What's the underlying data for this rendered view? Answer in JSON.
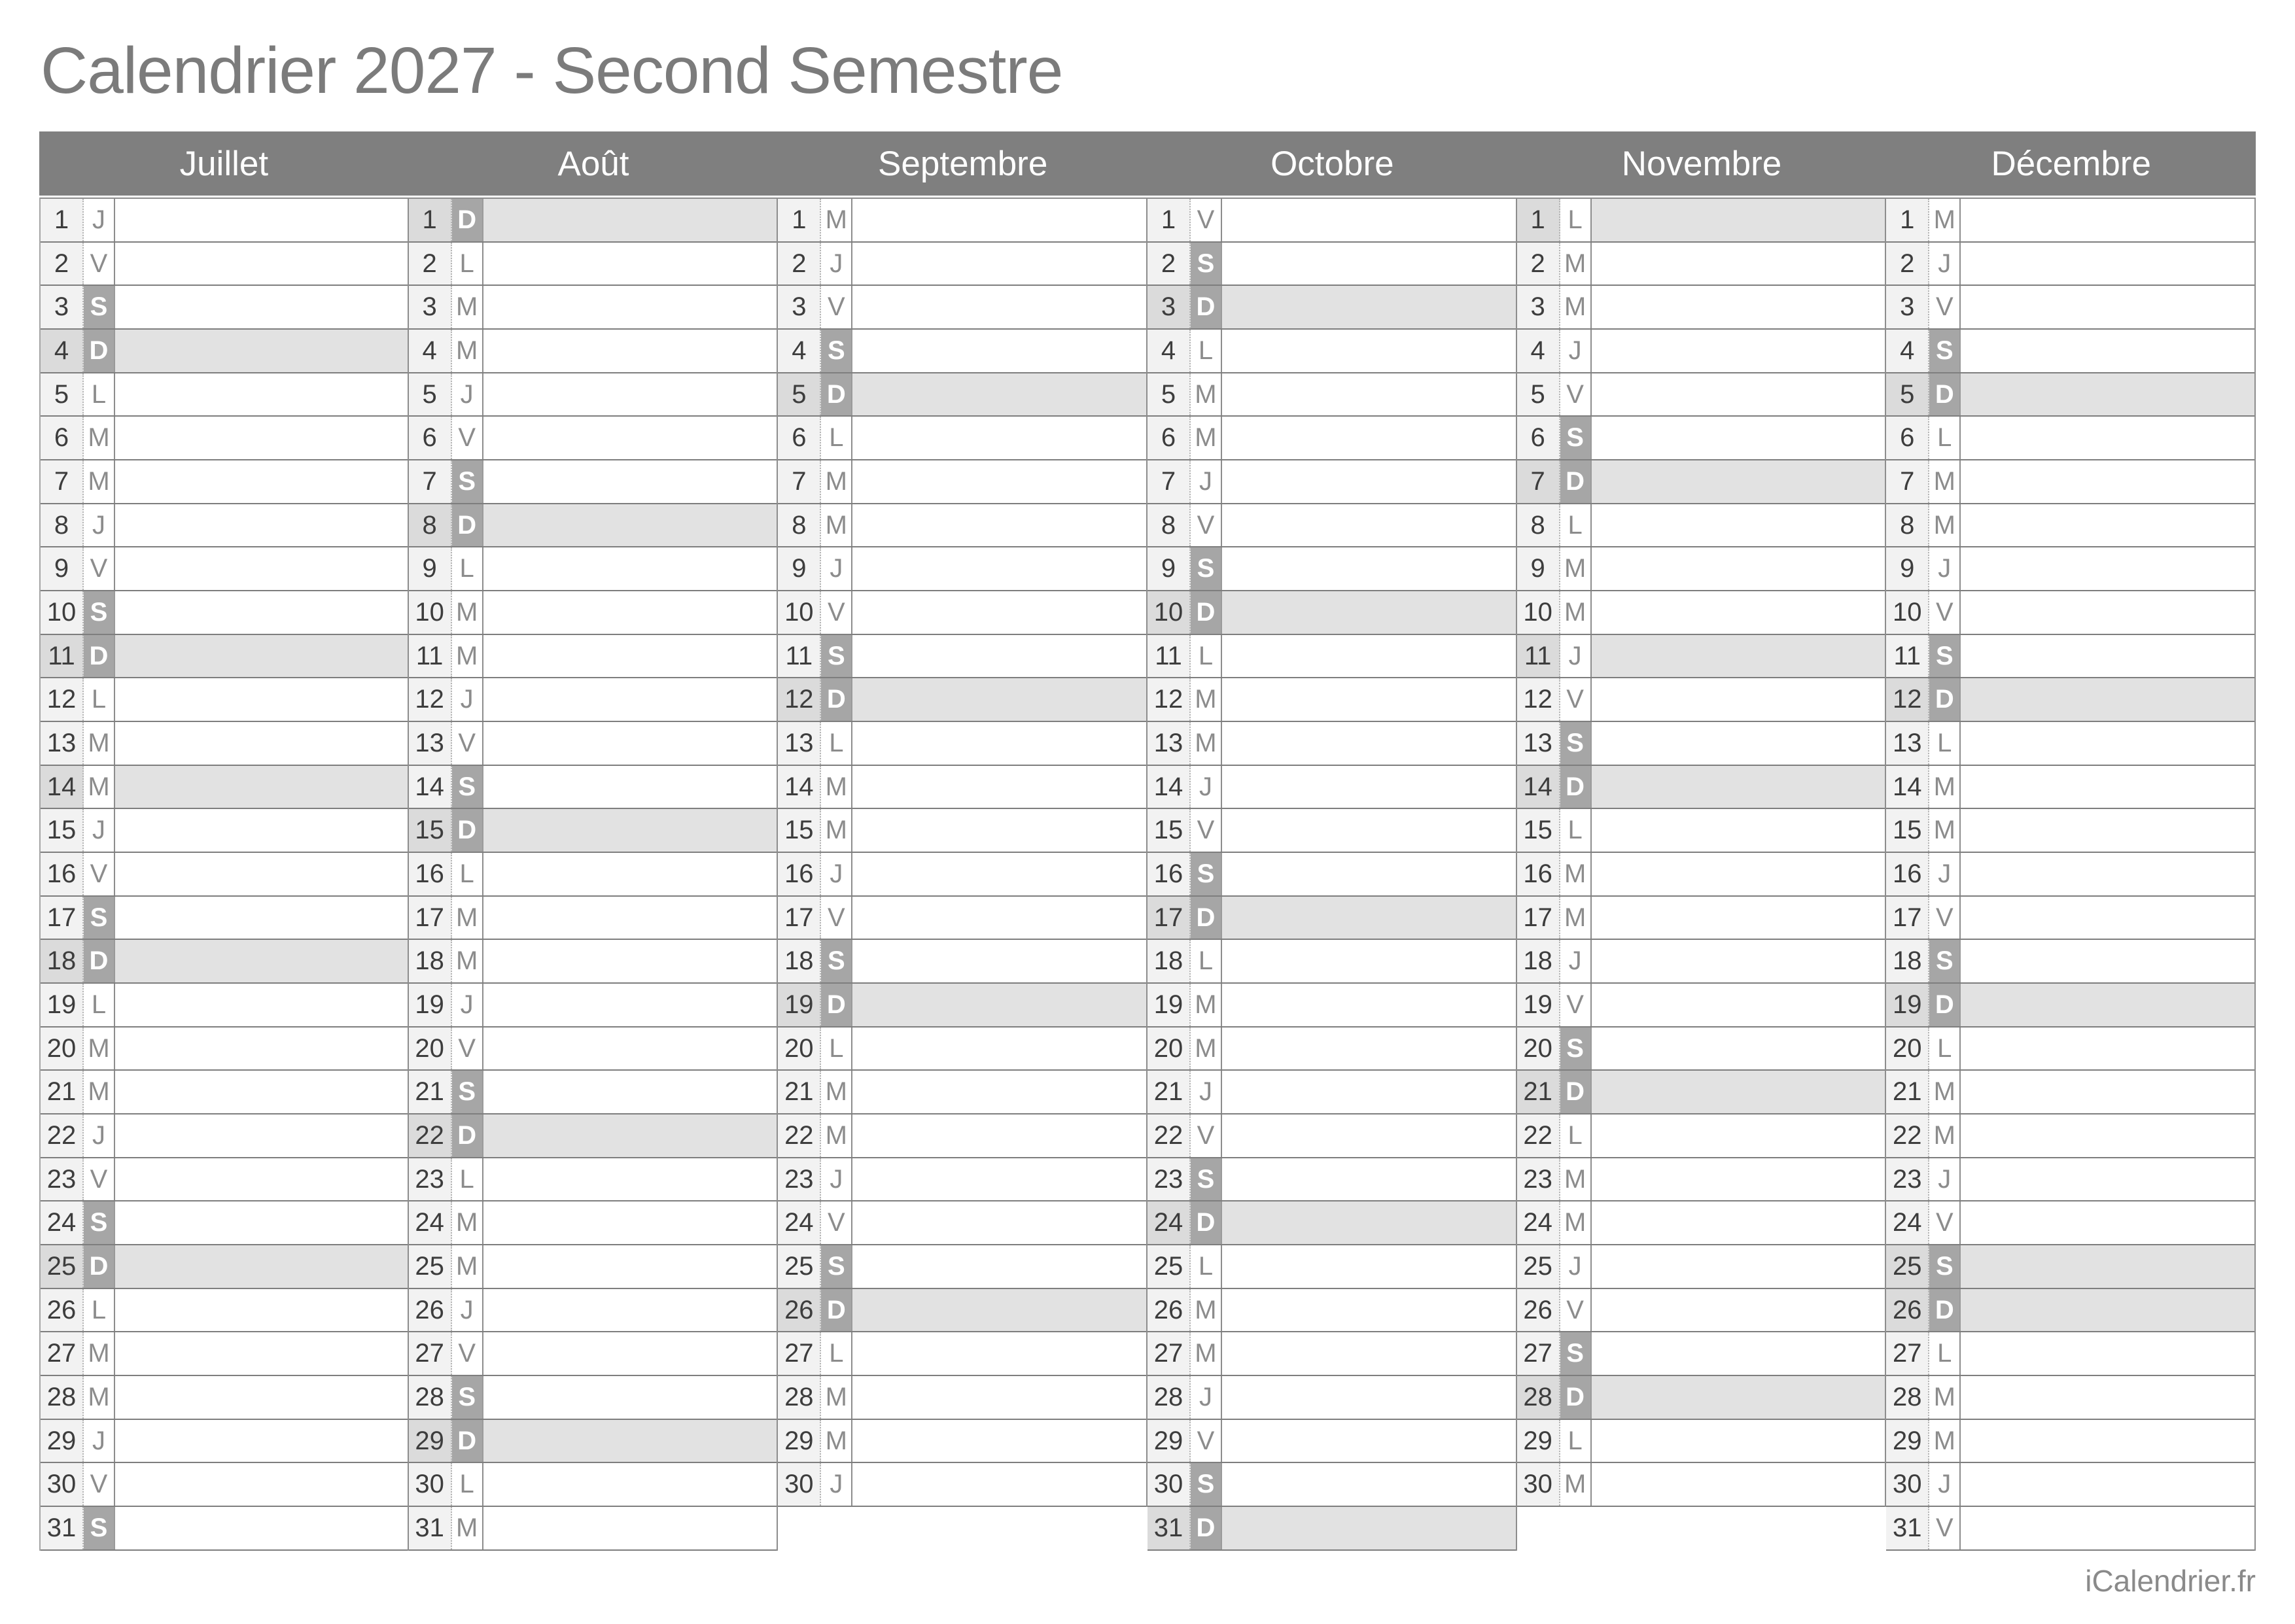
{
  "title": "Calendrier 2027 - Second Semestre",
  "footer": "iCalendrier.fr",
  "colors": {
    "title_text": "#7b7b7b",
    "header_bar": "#7f7f7f",
    "header_text": "#ffffff",
    "day_number_bg": "#f2f2f2",
    "weekend_letter_bg": "#a6a6a6",
    "weekend_letter_text": "#ffffff",
    "highlight_row_bg": "#e2e2e2",
    "highlight_number_bg": "#dbdbdb"
  },
  "months": [
    {
      "name": "Juillet",
      "days": [
        [
          1,
          "J"
        ],
        [
          2,
          "V"
        ],
        [
          3,
          "S"
        ],
        [
          4,
          "D"
        ],
        [
          5,
          "L"
        ],
        [
          6,
          "M"
        ],
        [
          7,
          "M"
        ],
        [
          8,
          "J"
        ],
        [
          9,
          "V"
        ],
        [
          10,
          "S"
        ],
        [
          11,
          "D"
        ],
        [
          12,
          "L"
        ],
        [
          13,
          "M"
        ],
        [
          14,
          "M"
        ],
        [
          15,
          "J"
        ],
        [
          16,
          "V"
        ],
        [
          17,
          "S"
        ],
        [
          18,
          "D"
        ],
        [
          19,
          "L"
        ],
        [
          20,
          "M"
        ],
        [
          21,
          "M"
        ],
        [
          22,
          "J"
        ],
        [
          23,
          "V"
        ],
        [
          24,
          "S"
        ],
        [
          25,
          "D"
        ],
        [
          26,
          "L"
        ],
        [
          27,
          "M"
        ],
        [
          28,
          "M"
        ],
        [
          29,
          "J"
        ],
        [
          30,
          "V"
        ],
        [
          31,
          "S"
        ]
      ],
      "weekend_days": [
        3,
        4,
        10,
        11,
        17,
        18,
        24,
        25,
        31
      ],
      "highlighted_days": [
        4,
        11,
        14,
        18,
        25
      ]
    },
    {
      "name": "Août",
      "days": [
        [
          1,
          "D"
        ],
        [
          2,
          "L"
        ],
        [
          3,
          "M"
        ],
        [
          4,
          "M"
        ],
        [
          5,
          "J"
        ],
        [
          6,
          "V"
        ],
        [
          7,
          "S"
        ],
        [
          8,
          "D"
        ],
        [
          9,
          "L"
        ],
        [
          10,
          "M"
        ],
        [
          11,
          "M"
        ],
        [
          12,
          "J"
        ],
        [
          13,
          "V"
        ],
        [
          14,
          "S"
        ],
        [
          15,
          "D"
        ],
        [
          16,
          "L"
        ],
        [
          17,
          "M"
        ],
        [
          18,
          "M"
        ],
        [
          19,
          "J"
        ],
        [
          20,
          "V"
        ],
        [
          21,
          "S"
        ],
        [
          22,
          "D"
        ],
        [
          23,
          "L"
        ],
        [
          24,
          "M"
        ],
        [
          25,
          "M"
        ],
        [
          26,
          "J"
        ],
        [
          27,
          "V"
        ],
        [
          28,
          "S"
        ],
        [
          29,
          "D"
        ],
        [
          30,
          "L"
        ],
        [
          31,
          "M"
        ]
      ],
      "weekend_days": [
        1,
        7,
        8,
        14,
        15,
        21,
        22,
        28,
        29
      ],
      "highlighted_days": [
        1,
        8,
        15,
        22,
        29
      ]
    },
    {
      "name": "Septembre",
      "days": [
        [
          1,
          "M"
        ],
        [
          2,
          "J"
        ],
        [
          3,
          "V"
        ],
        [
          4,
          "S"
        ],
        [
          5,
          "D"
        ],
        [
          6,
          "L"
        ],
        [
          7,
          "M"
        ],
        [
          8,
          "M"
        ],
        [
          9,
          "J"
        ],
        [
          10,
          "V"
        ],
        [
          11,
          "S"
        ],
        [
          12,
          "D"
        ],
        [
          13,
          "L"
        ],
        [
          14,
          "M"
        ],
        [
          15,
          "M"
        ],
        [
          16,
          "J"
        ],
        [
          17,
          "V"
        ],
        [
          18,
          "S"
        ],
        [
          19,
          "D"
        ],
        [
          20,
          "L"
        ],
        [
          21,
          "M"
        ],
        [
          22,
          "M"
        ],
        [
          23,
          "J"
        ],
        [
          24,
          "V"
        ],
        [
          25,
          "S"
        ],
        [
          26,
          "D"
        ],
        [
          27,
          "L"
        ],
        [
          28,
          "M"
        ],
        [
          29,
          "M"
        ],
        [
          30,
          "J"
        ]
      ],
      "weekend_days": [
        4,
        5,
        11,
        12,
        18,
        19,
        25,
        26
      ],
      "highlighted_days": [
        5,
        12,
        19,
        26
      ]
    },
    {
      "name": "Octobre",
      "days": [
        [
          1,
          "V"
        ],
        [
          2,
          "S"
        ],
        [
          3,
          "D"
        ],
        [
          4,
          "L"
        ],
        [
          5,
          "M"
        ],
        [
          6,
          "M"
        ],
        [
          7,
          "J"
        ],
        [
          8,
          "V"
        ],
        [
          9,
          "S"
        ],
        [
          10,
          "D"
        ],
        [
          11,
          "L"
        ],
        [
          12,
          "M"
        ],
        [
          13,
          "M"
        ],
        [
          14,
          "J"
        ],
        [
          15,
          "V"
        ],
        [
          16,
          "S"
        ],
        [
          17,
          "D"
        ],
        [
          18,
          "L"
        ],
        [
          19,
          "M"
        ],
        [
          20,
          "M"
        ],
        [
          21,
          "J"
        ],
        [
          22,
          "V"
        ],
        [
          23,
          "S"
        ],
        [
          24,
          "D"
        ],
        [
          25,
          "L"
        ],
        [
          26,
          "M"
        ],
        [
          27,
          "M"
        ],
        [
          28,
          "J"
        ],
        [
          29,
          "V"
        ],
        [
          30,
          "S"
        ],
        [
          31,
          "D"
        ]
      ],
      "weekend_days": [
        2,
        3,
        9,
        10,
        16,
        17,
        23,
        24,
        30,
        31
      ],
      "highlighted_days": [
        3,
        10,
        17,
        24,
        31
      ]
    },
    {
      "name": "Novembre",
      "days": [
        [
          1,
          "L"
        ],
        [
          2,
          "M"
        ],
        [
          3,
          "M"
        ],
        [
          4,
          "J"
        ],
        [
          5,
          "V"
        ],
        [
          6,
          "S"
        ],
        [
          7,
          "D"
        ],
        [
          8,
          "L"
        ],
        [
          9,
          "M"
        ],
        [
          10,
          "M"
        ],
        [
          11,
          "J"
        ],
        [
          12,
          "V"
        ],
        [
          13,
          "S"
        ],
        [
          14,
          "D"
        ],
        [
          15,
          "L"
        ],
        [
          16,
          "M"
        ],
        [
          17,
          "M"
        ],
        [
          18,
          "J"
        ],
        [
          19,
          "V"
        ],
        [
          20,
          "S"
        ],
        [
          21,
          "D"
        ],
        [
          22,
          "L"
        ],
        [
          23,
          "M"
        ],
        [
          24,
          "M"
        ],
        [
          25,
          "J"
        ],
        [
          26,
          "V"
        ],
        [
          27,
          "S"
        ],
        [
          28,
          "D"
        ],
        [
          29,
          "L"
        ],
        [
          30,
          "M"
        ]
      ],
      "weekend_days": [
        6,
        7,
        13,
        14,
        20,
        21,
        27,
        28
      ],
      "highlighted_days": [
        1,
        7,
        11,
        14,
        21,
        28
      ]
    },
    {
      "name": "Décembre",
      "days": [
        [
          1,
          "M"
        ],
        [
          2,
          "J"
        ],
        [
          3,
          "V"
        ],
        [
          4,
          "S"
        ],
        [
          5,
          "D"
        ],
        [
          6,
          "L"
        ],
        [
          7,
          "M"
        ],
        [
          8,
          "M"
        ],
        [
          9,
          "J"
        ],
        [
          10,
          "V"
        ],
        [
          11,
          "S"
        ],
        [
          12,
          "D"
        ],
        [
          13,
          "L"
        ],
        [
          14,
          "M"
        ],
        [
          15,
          "M"
        ],
        [
          16,
          "J"
        ],
        [
          17,
          "V"
        ],
        [
          18,
          "S"
        ],
        [
          19,
          "D"
        ],
        [
          20,
          "L"
        ],
        [
          21,
          "M"
        ],
        [
          22,
          "M"
        ],
        [
          23,
          "J"
        ],
        [
          24,
          "V"
        ],
        [
          25,
          "S"
        ],
        [
          26,
          "D"
        ],
        [
          27,
          "L"
        ],
        [
          28,
          "M"
        ],
        [
          29,
          "M"
        ],
        [
          30,
          "J"
        ],
        [
          31,
          "V"
        ]
      ],
      "weekend_days": [
        4,
        5,
        11,
        12,
        18,
        19,
        25,
        26
      ],
      "highlighted_days": [
        5,
        12,
        19,
        25,
        26
      ]
    }
  ]
}
